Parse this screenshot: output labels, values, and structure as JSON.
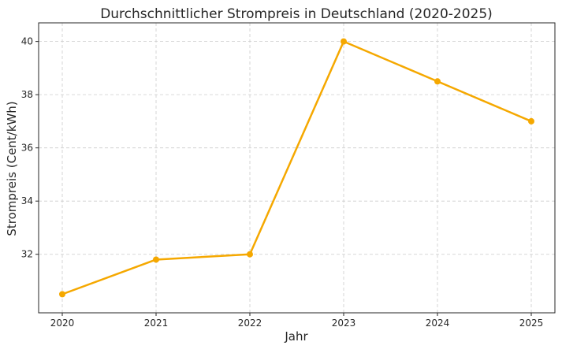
{
  "chart_data": {
    "type": "line",
    "title": "Durchschnittlicher Strompreis in Deutschland (2020-2025)",
    "xlabel": "Jahr",
    "ylabel": "Strompreis (Cent/kWh)",
    "x": [
      "2020",
      "2021",
      "2022",
      "2023",
      "2024",
      "2025"
    ],
    "series": [
      {
        "values": [
          30.5,
          31.8,
          32.0,
          40.0,
          38.5,
          37.0
        ],
        "color": "#f5a800"
      }
    ],
    "yticks": [
      32,
      34,
      36,
      38,
      40
    ],
    "ylim": [
      29.8,
      40.7
    ],
    "grid": true,
    "marker": "circle"
  }
}
